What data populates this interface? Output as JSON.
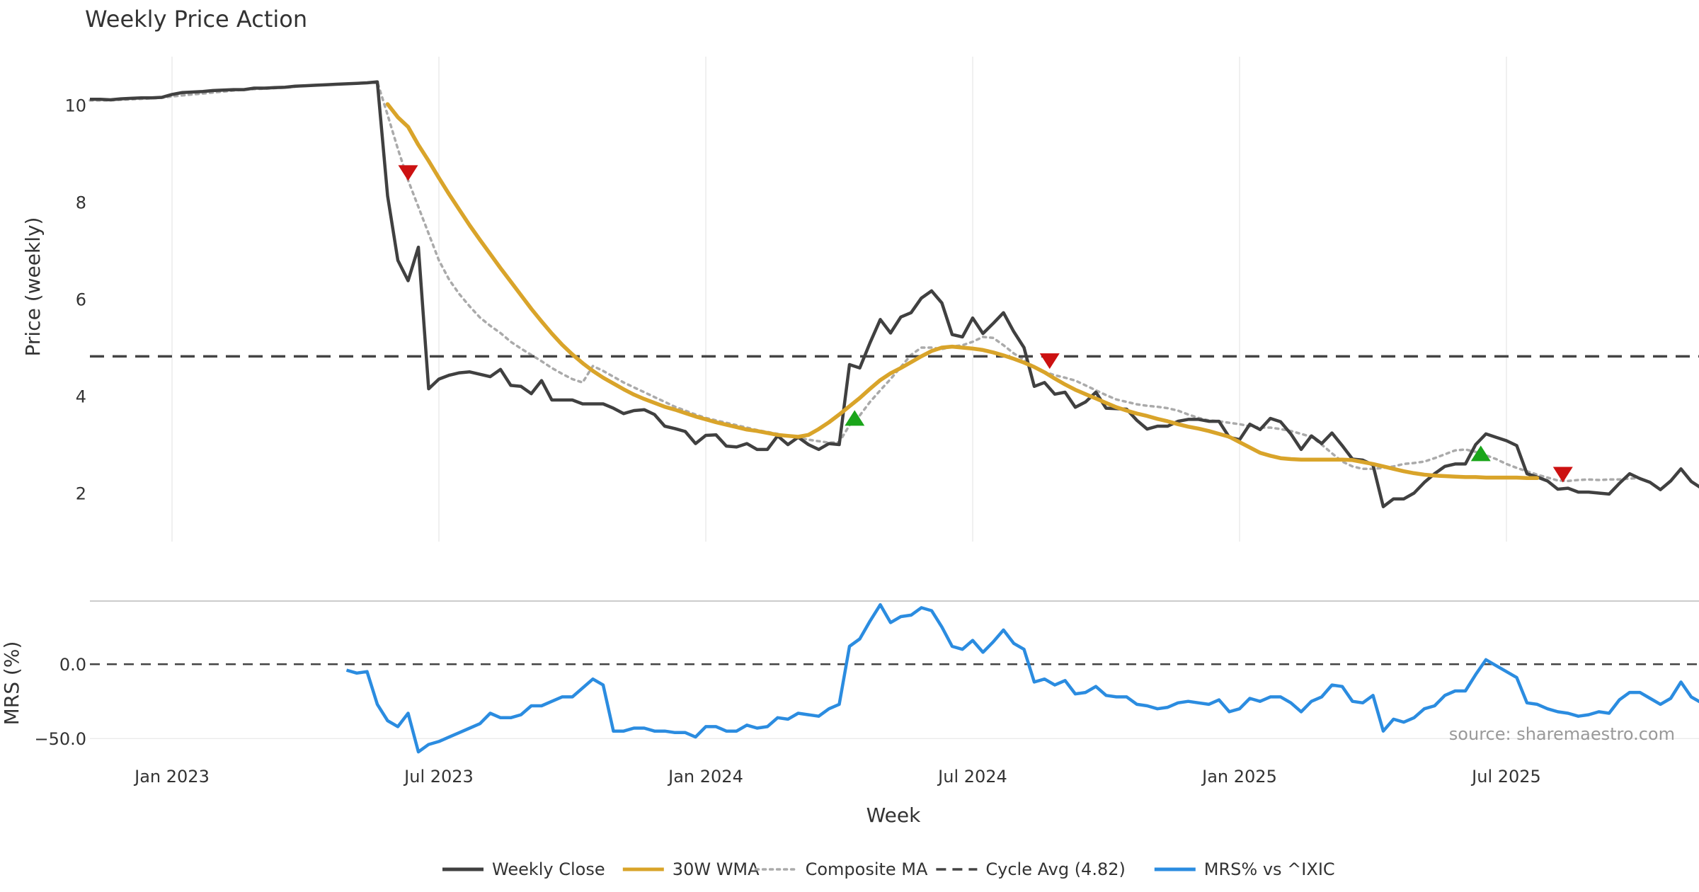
{
  "chart_data": [
    {
      "type": "line",
      "panel": "price",
      "title": "Weekly Price Action",
      "xlabel": "Week",
      "ylabel": "Price (weekly)",
      "ylim": [
        1.0,
        11.0
      ],
      "yticks": [
        2,
        4,
        6,
        8,
        10
      ],
      "xticks": [
        "Jan 2023",
        "Jul 2023",
        "Jan 2024",
        "Jul 2024",
        "Jan 2025",
        "Jul 2025"
      ],
      "xtick_weeks": [
        8,
        34,
        60,
        86,
        112,
        138
      ],
      "series": [
        {
          "name": "Weekly Close",
          "color": "#404040",
          "start_week": 0,
          "values": [
            10.12,
            10.12,
            10.11,
            10.13,
            10.14,
            10.15,
            10.15,
            10.16,
            10.22,
            10.26,
            10.27,
            10.28,
            10.3,
            10.31,
            10.32,
            10.32,
            10.35,
            10.35,
            10.36,
            10.37,
            10.39,
            10.4,
            10.41,
            10.42,
            10.43,
            10.44,
            10.45,
            10.46,
            10.48,
            8.13,
            6.8,
            6.38,
            7.07,
            4.15,
            4.35,
            4.43,
            4.48,
            4.5,
            4.45,
            4.4,
            4.55,
            4.22,
            4.2,
            4.05,
            4.32,
            3.92,
            3.92,
            3.92,
            3.84,
            3.84,
            3.84,
            3.75,
            3.64,
            3.7,
            3.72,
            3.62,
            3.38,
            3.33,
            3.27,
            3.02,
            3.19,
            3.2,
            2.97,
            2.95,
            3.02,
            2.9,
            2.9,
            3.18,
            3.0,
            3.15,
            3.0,
            2.9,
            3.02,
            3.0,
            4.65,
            4.58,
            5.1,
            5.58,
            5.3,
            5.63,
            5.72,
            6.02,
            6.17,
            5.92,
            5.27,
            5.22,
            5.61,
            5.29,
            5.5,
            5.72,
            5.33,
            5.0,
            4.2,
            4.28,
            4.04,
            4.08,
            3.77,
            3.88,
            4.08,
            3.75,
            3.74,
            3.73,
            3.5,
            3.32,
            3.38,
            3.38,
            3.48,
            3.52,
            3.52,
            3.48,
            3.48,
            3.15,
            3.1,
            3.42,
            3.31,
            3.54,
            3.47,
            3.22,
            2.9,
            3.18,
            3.02,
            3.24,
            2.98,
            2.7,
            2.68,
            2.58,
            1.72,
            1.88,
            1.88,
            2.0,
            2.22,
            2.4,
            2.55,
            2.6,
            2.6,
            3.0,
            3.22,
            3.15,
            3.08,
            2.98,
            2.4,
            2.33,
            2.25,
            2.08,
            2.1,
            2.02,
            2.02,
            2.0,
            1.98,
            2.2,
            2.4,
            2.3,
            2.22,
            2.07,
            2.25,
            2.5,
            2.24,
            2.1
          ]
        },
        {
          "name": "30W WMA",
          "color": "#d9a42a",
          "start_week": 29,
          "values": [
            10.02,
            9.75,
            9.55,
            9.18,
            8.85,
            8.5,
            8.16,
            7.84,
            7.52,
            7.22,
            6.93,
            6.64,
            6.36,
            6.08,
            5.8,
            5.54,
            5.29,
            5.06,
            4.86,
            4.68,
            4.52,
            4.38,
            4.26,
            4.14,
            4.03,
            3.94,
            3.86,
            3.78,
            3.72,
            3.65,
            3.58,
            3.52,
            3.46,
            3.41,
            3.36,
            3.31,
            3.28,
            3.24,
            3.2,
            3.18,
            3.16,
            3.2,
            3.32,
            3.46,
            3.62,
            3.79,
            3.96,
            4.15,
            4.33,
            4.47,
            4.58,
            4.7,
            4.82,
            4.93,
            5.0,
            5.02,
            5.0,
            4.98,
            4.95,
            4.9,
            4.84,
            4.77,
            4.69,
            4.6,
            4.49,
            4.36,
            4.24,
            4.13,
            4.04,
            3.95,
            3.86,
            3.77,
            3.7,
            3.64,
            3.59,
            3.53,
            3.48,
            3.42,
            3.37,
            3.33,
            3.28,
            3.22,
            3.16,
            3.05,
            2.94,
            2.83,
            2.77,
            2.72,
            2.7,
            2.69,
            2.69,
            2.69,
            2.69,
            2.69,
            2.68,
            2.64,
            2.6,
            2.55,
            2.5,
            2.45,
            2.41,
            2.38,
            2.36,
            2.35,
            2.34,
            2.33,
            2.33,
            2.32,
            2.32,
            2.32,
            2.32,
            2.31,
            2.31
          ]
        },
        {
          "name": "Composite MA",
          "color": "#aaaaaa",
          "start_week": 0,
          "values": [
            10.1,
            10.1,
            10.1,
            10.11,
            10.12,
            10.13,
            10.14,
            10.15,
            10.18,
            10.2,
            10.22,
            10.24,
            10.26,
            10.28,
            10.3,
            10.32,
            10.33,
            10.34,
            10.35,
            10.36,
            10.38,
            10.4,
            10.41,
            10.42,
            10.43,
            10.44,
            10.45,
            10.46,
            10.48,
            9.8,
            9.1,
            8.45,
            7.9,
            7.35,
            6.8,
            6.4,
            6.1,
            5.85,
            5.62,
            5.45,
            5.3,
            5.12,
            4.98,
            4.85,
            4.72,
            4.58,
            4.46,
            4.35,
            4.28,
            4.62,
            4.52,
            4.4,
            4.28,
            4.18,
            4.08,
            3.98,
            3.88,
            3.78,
            3.7,
            3.62,
            3.55,
            3.5,
            3.45,
            3.4,
            3.35,
            3.3,
            3.26,
            3.22,
            3.18,
            3.14,
            3.1,
            3.07,
            3.04,
            3.05,
            3.4,
            3.6,
            3.88,
            4.12,
            4.35,
            4.6,
            4.85,
            5.0,
            5.0,
            4.97,
            5.02,
            5.05,
            5.12,
            5.22,
            5.2,
            5.05,
            4.88,
            4.75,
            4.6,
            4.5,
            4.43,
            4.38,
            4.32,
            4.22,
            4.12,
            4.02,
            3.93,
            3.88,
            3.83,
            3.8,
            3.78,
            3.75,
            3.7,
            3.62,
            3.55,
            3.5,
            3.48,
            3.45,
            3.42,
            3.38,
            3.35,
            3.35,
            3.32,
            3.28,
            3.22,
            3.16,
            3.0,
            2.82,
            2.65,
            2.55,
            2.5,
            2.5,
            2.52,
            2.55,
            2.6,
            2.62,
            2.65,
            2.72,
            2.8,
            2.88,
            2.9,
            2.85,
            2.78,
            2.7,
            2.6,
            2.52,
            2.45,
            2.38,
            2.32,
            2.26,
            2.25,
            2.27,
            2.28,
            2.27,
            2.28,
            2.28,
            2.3,
            2.31
          ]
        },
        {
          "name": "Cycle Avg (4.82)",
          "color": "#444444",
          "constant": 4.82
        }
      ],
      "markers": [
        {
          "type": "sell",
          "week": 31,
          "value": 8.6,
          "color": "#cc1111"
        },
        {
          "type": "buy",
          "week": 74.5,
          "value": 3.55,
          "color": "#1aa51a"
        },
        {
          "type": "sell",
          "week": 93.5,
          "value": 4.72,
          "color": "#cc1111"
        },
        {
          "type": "buy",
          "week": 135.5,
          "value": 2.82,
          "color": "#1aa51a"
        },
        {
          "type": "sell",
          "week": 143.5,
          "value": 2.38,
          "color": "#cc1111"
        }
      ]
    },
    {
      "type": "line",
      "panel": "mrs",
      "ylabel": "MRS (%)",
      "ylim": [
        -58,
        42
      ],
      "yticks": [
        0.0,
        -50.0
      ],
      "ytick_labels": [
        "0.0",
        "−50.0"
      ],
      "zero_line": 0,
      "series": [
        {
          "name": "MRS% vs ^IXIC",
          "color": "#2b8ce0",
          "start_week": 25,
          "values": [
            -4,
            -6,
            -5,
            -27,
            -38,
            -42,
            -33,
            -59,
            -54,
            -52,
            -49,
            -46,
            -43,
            -40,
            -33,
            -36,
            -36,
            -34,
            -28,
            -28,
            -25,
            -22,
            -22,
            -16,
            -10,
            -14,
            -45,
            -45,
            -43,
            -43,
            -45,
            -45,
            -46,
            -46,
            -49,
            -42,
            -42,
            -45,
            -45,
            -41,
            -43,
            -42,
            -36,
            -37,
            -33,
            -34,
            -35,
            -30,
            -27,
            12,
            17,
            29,
            40,
            28,
            32,
            33,
            38,
            36,
            25,
            12,
            10,
            16,
            8,
            15,
            23,
            14,
            10,
            -12,
            -10,
            -14,
            -11,
            -20,
            -19,
            -15,
            -21,
            -22,
            -22,
            -27,
            -28,
            -30,
            -29,
            -26,
            -25,
            -26,
            -27,
            -24,
            -32,
            -30,
            -23,
            -25,
            -22,
            -22,
            -26,
            -32,
            -25,
            -22,
            -14,
            -15,
            -25,
            -26,
            -21,
            -45,
            -37,
            -39,
            -36,
            -30,
            -28,
            -21,
            -18,
            -18,
            -7,
            3,
            -1,
            -5,
            -9,
            -26,
            -27,
            -30,
            -32,
            -33,
            -35,
            -34,
            -32,
            -33,
            -24,
            -19,
            -19,
            -23,
            -27,
            -23,
            -12,
            -22,
            -26
          ]
        }
      ],
      "annotation": "source: sharemaestro.com"
    }
  ],
  "legend": {
    "items": [
      {
        "label": "Weekly Close",
        "style": "solid",
        "color": "#404040"
      },
      {
        "label": "30W WMA",
        "style": "solid",
        "color": "#d9a42a"
      },
      {
        "label": "Composite MA",
        "style": "dotted",
        "color": "#aaaaaa"
      },
      {
        "label": "Cycle Avg (4.82)",
        "style": "dashed",
        "color": "#444444"
      },
      {
        "label": "MRS% vs ^IXIC",
        "style": "solid",
        "color": "#2b8ce0"
      }
    ]
  }
}
